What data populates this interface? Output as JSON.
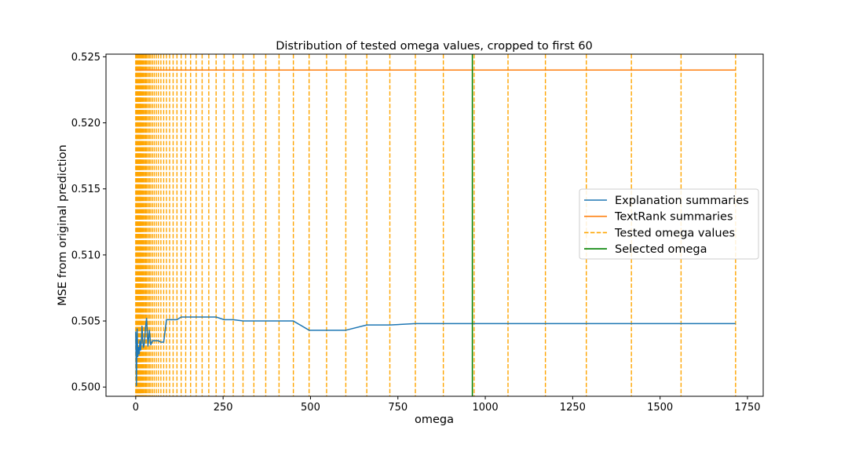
{
  "chart_data": {
    "type": "line",
    "title": "Distribution of tested omega values, cropped to first 60",
    "xlabel": "omega",
    "ylabel": "MSE from original prediction",
    "xlim": [
      -85,
      1795
    ],
    "ylim": [
      0.4993,
      0.5252
    ],
    "xticks": [
      0,
      250,
      500,
      750,
      1000,
      1250,
      1500,
      1750
    ],
    "yticks": [
      0.5,
      0.505,
      0.51,
      0.515,
      0.52,
      0.525
    ],
    "ytick_labels": [
      "0.500",
      "0.505",
      "0.510",
      "0.515",
      "0.520",
      "0.525"
    ],
    "grid": false,
    "legend_position": "center-right",
    "colors": {
      "explanation": "#1f77b4",
      "textrank": "#ff7f0e",
      "tested": "#ffa500",
      "selected": "#008000"
    },
    "series": [
      {
        "name": "Explanation summaries",
        "color": "#1f77b4",
        "style": "solid",
        "x": [
          0,
          2,
          4,
          6,
          8,
          10,
          12,
          14,
          16,
          18,
          20,
          22,
          25,
          28,
          31,
          35,
          39,
          43,
          48,
          53,
          59,
          65,
          72,
          80,
          88,
          97,
          107,
          118,
          130,
          143,
          157,
          173,
          190,
          209,
          230,
          253,
          279,
          307,
          338,
          372,
          410,
          451,
          496,
          546,
          601,
          661,
          727,
          800,
          880,
          968,
          1065,
          1172,
          1289,
          1418,
          1560,
          1716
        ],
        "y": [
          0.5042,
          0.5001,
          0.5044,
          0.5023,
          0.503,
          0.5025,
          0.5035,
          0.5028,
          0.5034,
          0.5046,
          0.5036,
          0.503,
          0.5033,
          0.5045,
          0.5052,
          0.5031,
          0.5043,
          0.5032,
          0.5035,
          0.5035,
          0.5035,
          0.5035,
          0.5034,
          0.5034,
          0.5051,
          0.5051,
          0.5051,
          0.5051,
          0.5053,
          0.5053,
          0.5053,
          0.5053,
          0.5053,
          0.5053,
          0.5053,
          0.5051,
          0.5051,
          0.505,
          0.505,
          0.505,
          0.505,
          0.505,
          0.5043,
          0.5043,
          0.5043,
          0.5047,
          0.5047,
          0.5048,
          0.5048,
          0.5048,
          0.5048,
          0.5048,
          0.5048,
          0.5048,
          0.5048,
          0.5048
        ]
      },
      {
        "name": "TextRank summaries",
        "color": "#ff7f0e",
        "style": "solid",
        "x": [
          0,
          1716
        ],
        "y": [
          0.524,
          0.524
        ]
      }
    ],
    "tested_omega": {
      "name": "Tested omega values",
      "color": "#ffa500",
      "style": "dashed",
      "values": [
        0,
        1,
        2,
        3,
        4,
        5,
        6,
        7,
        8,
        9,
        10,
        11,
        12,
        13,
        14,
        15,
        16,
        18,
        20,
        22,
        25,
        28,
        31,
        35,
        39,
        43,
        48,
        53,
        59,
        65,
        72,
        80,
        88,
        97,
        107,
        118,
        130,
        143,
        157,
        173,
        190,
        209,
        230,
        253,
        279,
        307,
        338,
        372,
        410,
        451,
        496,
        546,
        601,
        661,
        727,
        800,
        880,
        968,
        1065,
        1172,
        1289,
        1418,
        1560,
        1716
      ]
    },
    "selected_omega": {
      "name": "Selected omega",
      "color": "#008000",
      "value": 963
    },
    "legend": [
      {
        "label": "Explanation summaries",
        "color": "#1f77b4",
        "style": "solid"
      },
      {
        "label": "TextRank summaries",
        "color": "#ff7f0e",
        "style": "solid"
      },
      {
        "label": "Tested omega values",
        "color": "#ffa500",
        "style": "dashed"
      },
      {
        "label": "Selected omega",
        "color": "#008000",
        "style": "solid"
      }
    ]
  }
}
